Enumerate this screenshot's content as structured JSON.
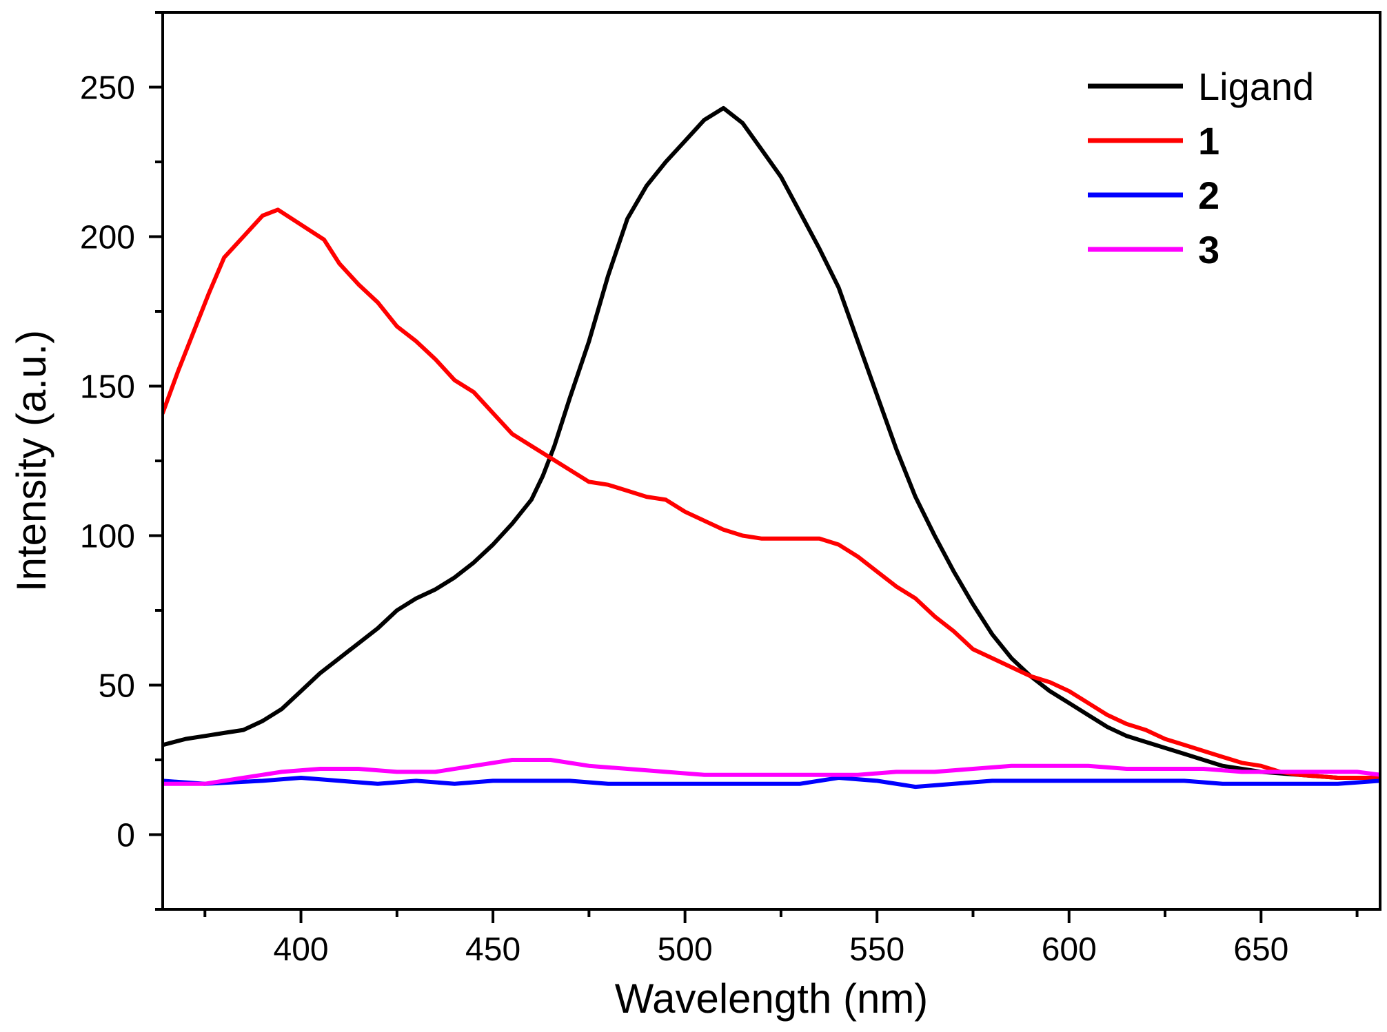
{
  "chart_data": {
    "type": "line",
    "title": "",
    "xlabel": "Wavelength (nm)",
    "ylabel": "Intensity (a.u.)",
    "xlim": [
      364,
      681
    ],
    "ylim": [
      -25,
      275
    ],
    "x_ticks": [
      400,
      450,
      500,
      550,
      600,
      650
    ],
    "x_minor_ticks": [
      375,
      425,
      475,
      525,
      575,
      625,
      675
    ],
    "y_ticks": [
      0,
      50,
      100,
      150,
      200,
      250
    ],
    "y_minor_ticks": [
      -25,
      25,
      75,
      125,
      175,
      225,
      275
    ],
    "legend_position": "top-right",
    "grid": false,
    "series": [
      {
        "name": "Ligand",
        "bold": false,
        "color": "#000000",
        "points": [
          [
            364,
            30
          ],
          [
            370,
            32
          ],
          [
            375,
            33
          ],
          [
            380,
            34
          ],
          [
            385,
            35
          ],
          [
            390,
            38
          ],
          [
            395,
            42
          ],
          [
            400,
            48
          ],
          [
            405,
            54
          ],
          [
            410,
            59
          ],
          [
            415,
            64
          ],
          [
            420,
            69
          ],
          [
            425,
            75
          ],
          [
            430,
            79
          ],
          [
            435,
            82
          ],
          [
            440,
            86
          ],
          [
            445,
            91
          ],
          [
            450,
            97
          ],
          [
            455,
            104
          ],
          [
            460,
            112
          ],
          [
            463,
            120
          ],
          [
            466,
            130
          ],
          [
            470,
            146
          ],
          [
            475,
            165
          ],
          [
            480,
            187
          ],
          [
            485,
            206
          ],
          [
            490,
            217
          ],
          [
            495,
            225
          ],
          [
            500,
            232
          ],
          [
            505,
            239
          ],
          [
            510,
            243
          ],
          [
            515,
            238
          ],
          [
            520,
            229
          ],
          [
            525,
            220
          ],
          [
            530,
            208
          ],
          [
            535,
            196
          ],
          [
            540,
            183
          ],
          [
            545,
            165
          ],
          [
            550,
            147
          ],
          [
            555,
            129
          ],
          [
            560,
            113
          ],
          [
            565,
            100
          ],
          [
            570,
            88
          ],
          [
            575,
            77
          ],
          [
            580,
            67
          ],
          [
            585,
            59
          ],
          [
            590,
            53
          ],
          [
            595,
            48
          ],
          [
            600,
            44
          ],
          [
            605,
            40
          ],
          [
            610,
            36
          ],
          [
            615,
            33
          ],
          [
            620,
            31
          ],
          [
            625,
            29
          ],
          [
            630,
            27
          ],
          [
            635,
            25
          ],
          [
            640,
            23
          ],
          [
            645,
            22
          ],
          [
            650,
            21
          ],
          [
            660,
            20
          ],
          [
            670,
            19
          ],
          [
            681,
            19
          ]
        ]
      },
      {
        "name": "1",
        "bold": true,
        "color": "#ff0000",
        "points": [
          [
            364,
            141
          ],
          [
            368,
            155
          ],
          [
            372,
            168
          ],
          [
            376,
            181
          ],
          [
            380,
            193
          ],
          [
            385,
            200
          ],
          [
            390,
            207
          ],
          [
            394,
            209
          ],
          [
            400,
            204
          ],
          [
            406,
            199
          ],
          [
            410,
            191
          ],
          [
            415,
            184
          ],
          [
            420,
            178
          ],
          [
            425,
            170
          ],
          [
            430,
            165
          ],
          [
            435,
            159
          ],
          [
            440,
            152
          ],
          [
            445,
            148
          ],
          [
            450,
            141
          ],
          [
            455,
            134
          ],
          [
            460,
            130
          ],
          [
            465,
            126
          ],
          [
            470,
            122
          ],
          [
            475,
            118
          ],
          [
            480,
            117
          ],
          [
            485,
            115
          ],
          [
            490,
            113
          ],
          [
            495,
            112
          ],
          [
            500,
            108
          ],
          [
            505,
            105
          ],
          [
            510,
            102
          ],
          [
            515,
            100
          ],
          [
            520,
            99
          ],
          [
            525,
            99
          ],
          [
            530,
            99
          ],
          [
            535,
            99
          ],
          [
            540,
            97
          ],
          [
            545,
            93
          ],
          [
            550,
            88
          ],
          [
            555,
            83
          ],
          [
            560,
            79
          ],
          [
            565,
            73
          ],
          [
            570,
            68
          ],
          [
            575,
            62
          ],
          [
            580,
            59
          ],
          [
            585,
            56
          ],
          [
            590,
            53
          ],
          [
            595,
            51
          ],
          [
            600,
            48
          ],
          [
            605,
            44
          ],
          [
            610,
            40
          ],
          [
            615,
            37
          ],
          [
            620,
            35
          ],
          [
            625,
            32
          ],
          [
            630,
            30
          ],
          [
            635,
            28
          ],
          [
            640,
            26
          ],
          [
            645,
            24
          ],
          [
            650,
            23
          ],
          [
            655,
            21
          ],
          [
            660,
            20
          ],
          [
            670,
            19
          ],
          [
            681,
            19
          ]
        ]
      },
      {
        "name": "2",
        "bold": true,
        "color": "#0000ff",
        "points": [
          [
            364,
            18
          ],
          [
            375,
            17
          ],
          [
            390,
            18
          ],
          [
            400,
            19
          ],
          [
            410,
            18
          ],
          [
            420,
            17
          ],
          [
            430,
            18
          ],
          [
            440,
            17
          ],
          [
            450,
            18
          ],
          [
            460,
            18
          ],
          [
            470,
            18
          ],
          [
            480,
            17
          ],
          [
            490,
            17
          ],
          [
            500,
            17
          ],
          [
            510,
            17
          ],
          [
            520,
            17
          ],
          [
            530,
            17
          ],
          [
            540,
            19
          ],
          [
            550,
            18
          ],
          [
            560,
            16
          ],
          [
            570,
            17
          ],
          [
            580,
            18
          ],
          [
            590,
            18
          ],
          [
            600,
            18
          ],
          [
            610,
            18
          ],
          [
            620,
            18
          ],
          [
            630,
            18
          ],
          [
            640,
            17
          ],
          [
            650,
            17
          ],
          [
            660,
            17
          ],
          [
            670,
            17
          ],
          [
            681,
            18
          ]
        ]
      },
      {
        "name": "3",
        "bold": true,
        "color": "#ff00ff",
        "points": [
          [
            364,
            17
          ],
          [
            375,
            17
          ],
          [
            385,
            19
          ],
          [
            395,
            21
          ],
          [
            405,
            22
          ],
          [
            415,
            22
          ],
          [
            425,
            21
          ],
          [
            435,
            21
          ],
          [
            445,
            23
          ],
          [
            455,
            25
          ],
          [
            465,
            25
          ],
          [
            475,
            23
          ],
          [
            485,
            22
          ],
          [
            495,
            21
          ],
          [
            505,
            20
          ],
          [
            515,
            20
          ],
          [
            525,
            20
          ],
          [
            535,
            20
          ],
          [
            545,
            20
          ],
          [
            555,
            21
          ],
          [
            565,
            21
          ],
          [
            575,
            22
          ],
          [
            585,
            23
          ],
          [
            595,
            23
          ],
          [
            605,
            23
          ],
          [
            615,
            22
          ],
          [
            625,
            22
          ],
          [
            635,
            22
          ],
          [
            645,
            21
          ],
          [
            655,
            21
          ],
          [
            665,
            21
          ],
          [
            675,
            21
          ],
          [
            681,
            20
          ]
        ]
      }
    ]
  }
}
